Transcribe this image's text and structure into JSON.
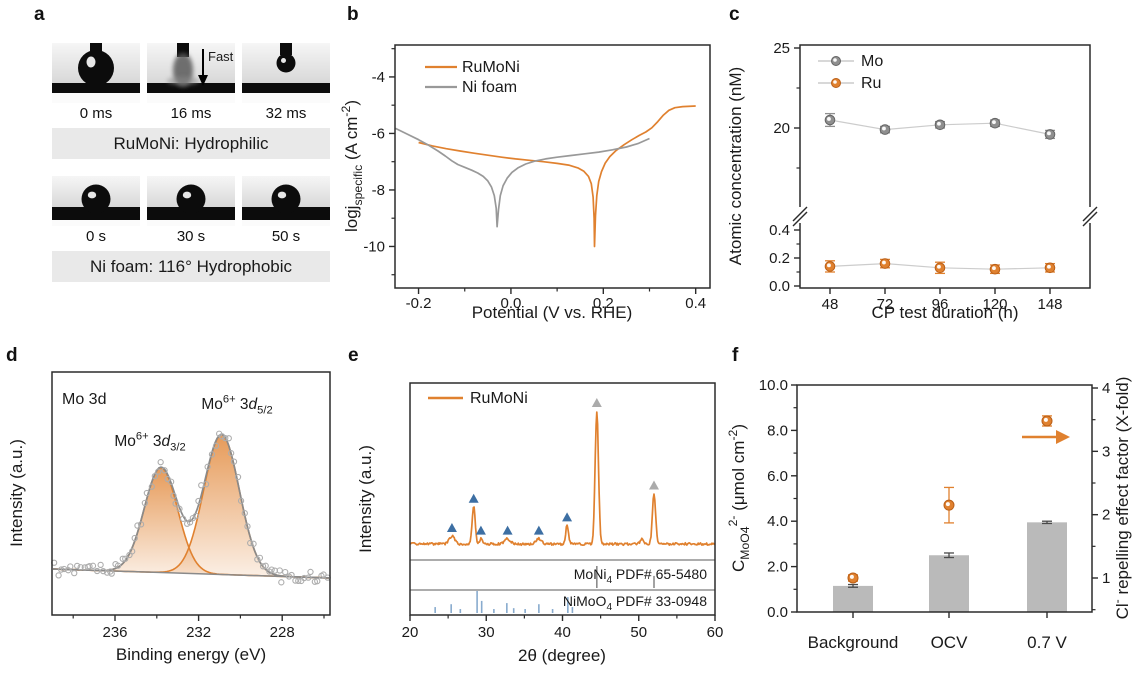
{
  "colors": {
    "orange": "#E0812F",
    "orange_dark": "#BA5F17",
    "gray": "#999999",
    "dark_gray": "#8C8C8C",
    "marker_gray": "#8F8F8F",
    "marker_gray_dark": "#646464",
    "light_gray_line": "#CCCCCC",
    "bar_gray": "#BABABA",
    "blue": "#3D6FA3",
    "ref_blue": "#88ABCE",
    "caption_bg": "#E9E9E9",
    "axis": "#2B2B2B",
    "scatter_stroke": "#ADADAD"
  },
  "panels": {
    "a": {
      "label": "a",
      "strips": [
        {
          "frames": [
            "attached-droplet",
            "absorbing-droplet",
            "detached-droplet"
          ],
          "times": [
            "0 ms",
            "16 ms",
            "32 ms"
          ],
          "annotation": "Fast",
          "caption": "RuMoNi: Hydrophilic"
        },
        {
          "frames": [
            "dome-droplet",
            "dome-droplet",
            "dome-droplet"
          ],
          "times": [
            "0 s",
            "30 s",
            "50 s"
          ],
          "caption": "Ni foam: 116° Hydrophobic"
        }
      ]
    },
    "b": {
      "label": "b"
    },
    "c": {
      "label": "c"
    },
    "d": {
      "label": "d"
    },
    "e": {
      "label": "e"
    },
    "f": {
      "label": "f"
    }
  },
  "chart_data": [
    {
      "id": "b",
      "type": "line",
      "xlabel": "Potential (V vs. RHE)",
      "ylabel_rich": [
        {
          "t": "logj"
        },
        {
          "t": "specific",
          "sub": true
        },
        {
          "t": " (A cm"
        },
        {
          "t": "-2",
          "sup": true
        },
        {
          "t": ")"
        }
      ],
      "xlim": [
        -0.251,
        0.431
      ],
      "ylim": [
        -11.47,
        -2.87
      ],
      "xticks": [
        -0.2,
        0.0,
        0.2,
        0.4
      ],
      "xminor": [
        -0.1,
        0.1,
        0.3
      ],
      "yticks": [
        -4,
        -6,
        -8,
        -10
      ],
      "yminor": [
        -3,
        -5,
        -7,
        -9,
        -11
      ],
      "legend_position": "top-left",
      "series": [
        {
          "name": "RuMoNi",
          "color": "orange",
          "points": [
            [
              -0.2,
              -6.32
            ],
            [
              -0.17,
              -6.44
            ],
            [
              -0.14,
              -6.54
            ],
            [
              -0.11,
              -6.62
            ],
            [
              -0.08,
              -6.7
            ],
            [
              -0.05,
              -6.77
            ],
            [
              -0.02,
              -6.84
            ],
            [
              0.01,
              -6.9
            ],
            [
              0.04,
              -6.95
            ],
            [
              0.07,
              -7.0
            ],
            [
              0.1,
              -7.06
            ],
            [
              0.125,
              -7.12
            ],
            [
              0.145,
              -7.22
            ],
            [
              0.158,
              -7.34
            ],
            [
              0.168,
              -7.52
            ],
            [
              0.174,
              -7.78
            ],
            [
              0.178,
              -8.25
            ],
            [
              0.18,
              -9.0
            ],
            [
              0.181,
              -10.0
            ],
            [
              0.183,
              -8.9
            ],
            [
              0.186,
              -8.2
            ],
            [
              0.19,
              -7.7
            ],
            [
              0.196,
              -7.35
            ],
            [
              0.204,
              -7.05
            ],
            [
              0.214,
              -6.82
            ],
            [
              0.228,
              -6.6
            ],
            [
              0.245,
              -6.4
            ],
            [
              0.262,
              -6.22
            ],
            [
              0.278,
              -6.07
            ],
            [
              0.292,
              -5.95
            ],
            [
              0.305,
              -5.8
            ],
            [
              0.318,
              -5.58
            ],
            [
              0.33,
              -5.35
            ],
            [
              0.342,
              -5.18
            ],
            [
              0.355,
              -5.09
            ],
            [
              0.372,
              -5.05
            ],
            [
              0.4,
              -5.03
            ]
          ]
        },
        {
          "name": "Ni foam",
          "color": "gray",
          "points": [
            [
              -0.25,
              -5.82
            ],
            [
              -0.225,
              -6.02
            ],
            [
              -0.2,
              -6.22
            ],
            [
              -0.178,
              -6.42
            ],
            [
              -0.158,
              -6.62
            ],
            [
              -0.142,
              -6.8
            ],
            [
              -0.128,
              -6.97
            ],
            [
              -0.115,
              -7.1
            ],
            [
              -0.1,
              -7.2
            ],
            [
              -0.085,
              -7.3
            ],
            [
              -0.072,
              -7.4
            ],
            [
              -0.06,
              -7.52
            ],
            [
              -0.05,
              -7.68
            ],
            [
              -0.042,
              -7.9
            ],
            [
              -0.036,
              -8.2
            ],
            [
              -0.032,
              -8.65
            ],
            [
              -0.03,
              -9.3
            ],
            [
              -0.027,
              -8.7
            ],
            [
              -0.023,
              -8.2
            ],
            [
              -0.017,
              -7.85
            ],
            [
              -0.008,
              -7.58
            ],
            [
              0.002,
              -7.38
            ],
            [
              0.015,
              -7.22
            ],
            [
              0.032,
              -7.08
            ],
            [
              0.052,
              -6.98
            ],
            [
              0.075,
              -6.9
            ],
            [
              0.1,
              -6.84
            ],
            [
              0.13,
              -6.78
            ],
            [
              0.16,
              -6.72
            ],
            [
              0.19,
              -6.66
            ],
            [
              0.22,
              -6.58
            ],
            [
              0.25,
              -6.48
            ],
            [
              0.275,
              -6.36
            ],
            [
              0.3,
              -6.18
            ]
          ]
        }
      ]
    },
    {
      "id": "c",
      "type": "scatter-broken-axis",
      "xlabel": "CP test duration (h)",
      "ylabel": "Atomic concentration (nM)",
      "x": [
        48,
        72,
        96,
        120,
        148
      ],
      "top_ticks": [
        25,
        20
      ],
      "top_minor": [
        22.5,
        17.5
      ],
      "bottom_ticks": [
        0.4,
        0.2,
        0.0
      ],
      "bottom_minor": [
        0.3,
        0.1
      ],
      "series": [
        {
          "name": "Ru",
          "color": "orange",
          "axis": "bottom",
          "values": [
            0.14,
            0.16,
            0.13,
            0.12,
            0.13
          ],
          "errors": [
            0.04,
            0.03,
            0.04,
            0.03,
            0.03
          ]
        },
        {
          "name": "Mo",
          "color": "gray",
          "axis": "top",
          "values": [
            20.5,
            19.9,
            20.2,
            20.3,
            19.6
          ],
          "errors": [
            0.4,
            0.2,
            0.2,
            0.2,
            0.25
          ]
        }
      ]
    },
    {
      "id": "d",
      "type": "xps",
      "annotation": "Mo 3d",
      "xlabel": "Binding energy (eV)",
      "ylabel": "Intensity (a.u.)",
      "x_reversed": true,
      "xticks": [
        236,
        232,
        228
      ],
      "xminor": [
        238,
        234,
        230,
        226
      ],
      "peaks": [
        {
          "label_rich": [
            {
              "t": "Mo"
            },
            {
              "t": "6+",
              "sup": true
            },
            {
              "t": " 3"
            },
            {
              "t": "d",
              "i": true
            },
            {
              "t": "3/2",
              "sub": true
            }
          ],
          "center_eV": 233.8,
          "sigma_eV": 0.8,
          "rel_height": 0.75
        },
        {
          "label_rich": [
            {
              "t": "Mo"
            },
            {
              "t": "6+",
              "sup": true
            },
            {
              "t": " 3"
            },
            {
              "t": "d",
              "i": true
            },
            {
              "t": "5/2",
              "sub": true
            }
          ],
          "center_eV": 230.9,
          "sigma_eV": 0.85,
          "rel_height": 1.0
        }
      ]
    },
    {
      "id": "e",
      "type": "xrd",
      "legend": "RuMoNi",
      "xlabel": "2θ (degree)",
      "ylabel": "Intensity (a.u.)",
      "xlim": [
        20,
        60
      ],
      "xticks": [
        20,
        30,
        40,
        50,
        60
      ],
      "xminor": [
        25,
        35,
        45,
        55
      ],
      "peaks": [
        {
          "two_theta": 25.5,
          "rel": 0.06,
          "sigma": 0.35
        },
        {
          "two_theta": 28.35,
          "rel": 0.28,
          "sigma": 0.2
        },
        {
          "two_theta": 29.3,
          "rel": 0.04,
          "sigma": 0.18
        },
        {
          "two_theta": 32.8,
          "rel": 0.04,
          "sigma": 0.35
        },
        {
          "two_theta": 36.9,
          "rel": 0.04,
          "sigma": 0.35
        },
        {
          "two_theta": 40.6,
          "rel": 0.14,
          "sigma": 0.18
        },
        {
          "two_theta": 44.5,
          "rel": 1.0,
          "sigma": 0.22
        },
        {
          "two_theta": 50.4,
          "rel": 0.04,
          "sigma": 0.2
        },
        {
          "two_theta": 52.0,
          "rel": 0.38,
          "sigma": 0.21
        }
      ],
      "markers": {
        "blue_triangles": [
          25.5,
          28.35,
          29.3,
          32.8,
          36.9,
          40.6
        ],
        "gray_triangles": [
          44.5,
          52.0
        ]
      },
      "refs": [
        {
          "label_rich": [
            {
              "t": "MoNi"
            },
            {
              "t": "4",
              "sub": true
            },
            {
              "t": " PDF# 65-5480"
            }
          ],
          "color": "dark_gray",
          "ticks": [
            [
              44.5,
              1.0
            ],
            [
              52.0,
              0.55
            ]
          ]
        },
        {
          "label_rich": [
            {
              "t": "NiMoO"
            },
            {
              "t": "4",
              "sub": true
            },
            {
              "t": " PDF# 33-0948"
            }
          ],
          "color": "ref_blue",
          "ticks": [
            [
              23.3,
              0.27
            ],
            [
              25.4,
              0.4
            ],
            [
              26.6,
              0.18
            ],
            [
              28.8,
              1.0
            ],
            [
              29.4,
              0.55
            ],
            [
              31.0,
              0.18
            ],
            [
              32.7,
              0.45
            ],
            [
              33.6,
              0.22
            ],
            [
              35.1,
              0.18
            ],
            [
              36.9,
              0.4
            ],
            [
              38.7,
              0.18
            ],
            [
              40.7,
              0.72
            ],
            [
              41.3,
              0.27
            ]
          ]
        }
      ]
    },
    {
      "id": "f",
      "type": "bar-dual-axis",
      "categories": [
        "Background",
        "OCV",
        "0.7 V"
      ],
      "left_axis": {
        "label_rich": [
          {
            "t": "C"
          },
          {
            "t": "MoO4",
            "sub": true
          },
          {
            "t": "2-",
            "sup": true
          },
          {
            "t": " (μmol cm"
          },
          {
            "t": "-2",
            "sup": true
          },
          {
            "t": ")"
          }
        ],
        "tick_labels": [
          "0.0",
          "2.0",
          "4.0",
          "6.0",
          "8.0",
          "10.0"
        ],
        "lim": [
          0,
          10
        ]
      },
      "right_axis": {
        "label_rich": [
          {
            "t": "Cl"
          },
          {
            "t": "-",
            "sup": true
          },
          {
            "t": " repelling effect factor (X-fold)"
          }
        ],
        "ticks": [
          1,
          2,
          3,
          4
        ],
        "minor": [
          0.5,
          1.5,
          2.5,
          3.5
        ]
      },
      "bars": {
        "name": "molybdate concentration",
        "color": "bar_gray",
        "values": [
          1.15,
          2.5,
          3.95
        ],
        "errors": [
          0.06,
          0.1,
          0.05
        ]
      },
      "points": {
        "name": "Cl repelling effect factor",
        "color": "orange",
        "values": [
          1.0,
          2.15,
          3.48
        ],
        "errors": [
          0.05,
          0.28,
          0.08
        ]
      },
      "arrow": "points-to-right-axis"
    }
  ]
}
